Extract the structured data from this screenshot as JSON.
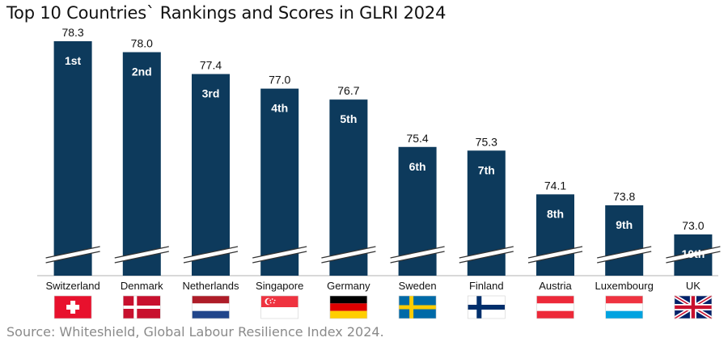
{
  "chart_data": {
    "type": "bar",
    "title": "Top 10 Countries` Rankings and Scores in GLRI 2024",
    "categories": [
      "Switzerland",
      "Denmark",
      "Netherlands",
      "Singapore",
      "Germany",
      "Sweden",
      "Finland",
      "Austria",
      "Luxembourg",
      "UK"
    ],
    "values": [
      78.3,
      78.0,
      77.4,
      77.0,
      76.7,
      75.4,
      75.3,
      74.1,
      73.8,
      73.0
    ],
    "value_labels": [
      "78.3",
      "78.0",
      "77.4",
      "77.0",
      "76.7",
      "75.4",
      "75.3",
      "74.1",
      "73.8",
      "73.0"
    ],
    "ranks": [
      "1st",
      "2nd",
      "3rd",
      "4th",
      "5th",
      "6th",
      "7th",
      "8th",
      "9th",
      "10th"
    ],
    "flag_icons": [
      "switzerland-flag-icon",
      "denmark-flag-icon",
      "netherlands-flag-icon",
      "singapore-flag-icon",
      "germany-flag-icon",
      "sweden-flag-icon",
      "finland-flag-icon",
      "austria-flag-icon",
      "luxembourg-flag-icon",
      "uk-flag-icon"
    ],
    "bar_color": "#0d3a5c",
    "axis_break": true,
    "xlabel": "",
    "ylabel": "",
    "grid": false
  },
  "source": "Source: Whiteshield, Global Labour Resilience Index 2024."
}
